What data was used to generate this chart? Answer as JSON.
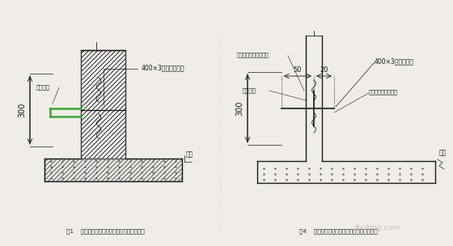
{
  "bg_color": "#f0ede8",
  "line_color": "#1a1a1a",
  "green_color": "#33aa33",
  "fig1_caption": "图1    地下室外墙水平施工缝钢筋止水带大样图",
  "fig4_caption": "图4    地下室外墙水平施工缝钢筋止水带大样图",
  "label_400x3_left": "400×3薄钢板止水带",
  "label_400x3_right": "400×3薄钢板止水",
  "label_chuban": "垫板",
  "label_jichu": "基础导墙",
  "label_300": "300",
  "label_50": "50",
  "label_20": "20",
  "label_jiaocha_top": "固定止水钢筋同止水带",
  "label_jiaocha_right": "固定止水钢筋绑钢筋",
  "watermark": "zhulong.com"
}
